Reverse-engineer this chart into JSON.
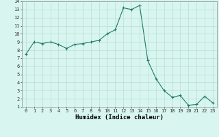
{
  "x": [
    0,
    1,
    2,
    3,
    4,
    5,
    6,
    7,
    8,
    9,
    10,
    11,
    12,
    13,
    14,
    15,
    16,
    17,
    18,
    19,
    20,
    21,
    22,
    23
  ],
  "y": [
    7.5,
    9.0,
    8.8,
    9.0,
    8.7,
    8.2,
    8.7,
    8.8,
    9.0,
    9.2,
    10.0,
    10.5,
    13.2,
    13.0,
    13.5,
    6.7,
    4.5,
    3.0,
    2.2,
    2.4,
    1.2,
    1.3,
    2.3,
    1.5
  ],
  "line_color": "#1e7a6a",
  "marker_color": "#1e7a6a",
  "bg_color": "#d8f5f0",
  "grid_color": "#b8ddd6",
  "xlabel": "Humidex (Indice chaleur)",
  "xlim": [
    -0.5,
    23.5
  ],
  "ylim": [
    1,
    14
  ],
  "yticks": [
    1,
    2,
    3,
    4,
    5,
    6,
    7,
    8,
    9,
    10,
    11,
    12,
    13,
    14
  ],
  "xticks": [
    0,
    1,
    2,
    3,
    4,
    5,
    6,
    7,
    8,
    9,
    10,
    11,
    12,
    13,
    14,
    15,
    16,
    17,
    18,
    19,
    20,
    21,
    22,
    23
  ],
  "tick_fontsize": 5.0,
  "label_fontsize": 6.5
}
